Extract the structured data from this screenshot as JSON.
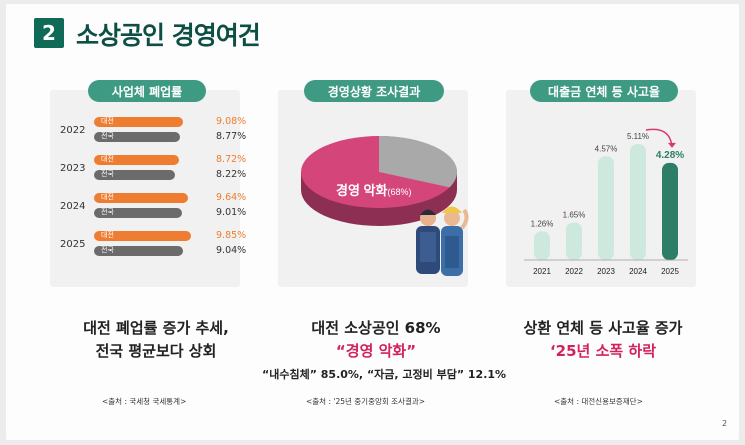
{
  "header": {
    "section_num": "2",
    "title": "소상공인 경영여건"
  },
  "closure": {
    "pill": "사업체 폐업률",
    "caption_line1": "대전 폐업률 증가 추세,",
    "caption_line2": "전국 평균보다 상회",
    "source": "<출처 : 국세청 국세통계>",
    "colors": {
      "daejeon": "#ee7d31",
      "national": "#6b6b6b"
    },
    "rows": [
      {
        "year": "2022",
        "d_label": "대전",
        "d_val": "9.08%",
        "d_num": 9.08,
        "n_label": "전국",
        "n_val": "8.77%",
        "n_num": 8.77
      },
      {
        "year": "2023",
        "d_label": "대전",
        "d_val": "8.72%",
        "d_num": 8.72,
        "n_label": "전국",
        "n_val": "8.22%",
        "n_num": 8.22
      },
      {
        "year": "2024",
        "d_label": "대전",
        "d_val": "9.64%",
        "d_num": 9.64,
        "n_label": "전국",
        "n_val": "9.01%",
        "n_num": 9.01
      },
      {
        "year": "2025",
        "d_label": "대전",
        "d_val": "9.85%",
        "d_num": 9.85,
        "n_label": "전국",
        "n_val": "9.04%",
        "n_num": 9.04
      }
    ]
  },
  "survey": {
    "pill": "경영상황 조사결과",
    "pie_label": "경영 악화",
    "pie_pct": "(68%)",
    "pie_value": 68,
    "caption_line1": "대전 소상공인 68%",
    "caption_line2": "“경영 악화”",
    "sub_caption": "“내수침체” 85.0%, “자금, 고정비 부담” 12.1%",
    "source": "<출처 : '25년 중기중앙회 조사결과>",
    "colors": {
      "pie": "#d4467a",
      "rest": "#a9a9a9"
    }
  },
  "loan": {
    "pill": "대출금 연체 등 사고율",
    "caption_line1": "상환 연체 등 사고율 증가",
    "caption_line2": "‘25년 소폭 하락",
    "source": "<출처 : 대전신용보증재단>",
    "colors": {
      "bar": "#cde9dd",
      "last": "#2e7d66",
      "arrow": "#d63a6b"
    },
    "bars": [
      {
        "year": "2021",
        "label": "1.26%",
        "value": 1.26
      },
      {
        "year": "2022",
        "label": "1.65%",
        "value": 1.65
      },
      {
        "year": "2023",
        "label": "4.57%",
        "value": 4.57
      },
      {
        "year": "2024",
        "label": "5.11%",
        "value": 5.11
      },
      {
        "year": "2025",
        "label": "4.28%",
        "value": 4.28
      }
    ]
  },
  "page_number": "2"
}
